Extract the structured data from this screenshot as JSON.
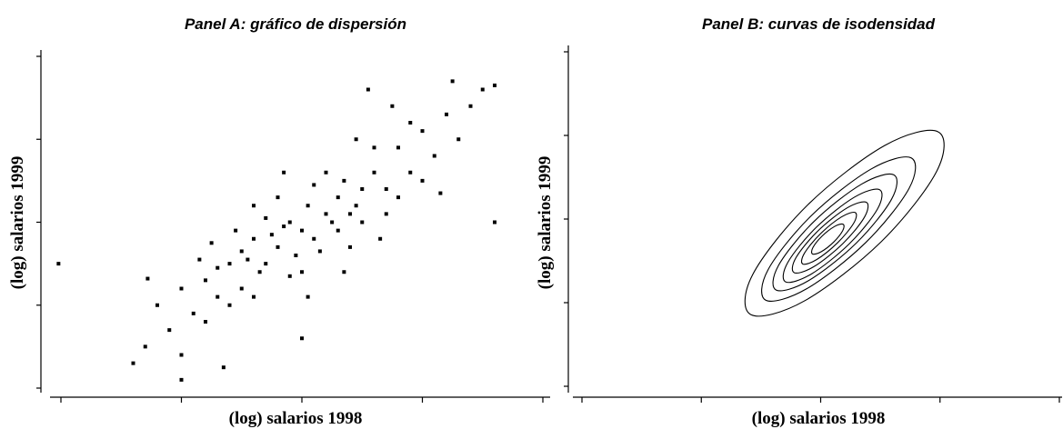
{
  "chart_data": [
    {
      "type": "scatter",
      "title": "Panel A: gráfico de dispersión",
      "xlabel": "(log) salarios 1998",
      "ylabel": "(log) salarios 1999",
      "xlim": [
        0,
        4
      ],
      "ylim": [
        0,
        4
      ],
      "xticks": [
        0,
        1,
        2,
        3,
        4
      ],
      "yticks": [
        0,
        1,
        2,
        3,
        4
      ],
      "color": "#000000",
      "x": [
        2.0,
        1.8,
        2.2,
        1.9,
        2.1,
        2.3,
        1.7,
        2.4,
        1.6,
        2.5,
        1.95,
        2.05,
        1.85,
        2.15,
        2.25,
        1.75,
        2.35,
        1.65,
        2.45,
        1.55,
        2.6,
        1.5,
        2.7,
        1.4,
        2.8,
        1.3,
        2.9,
        1.2,
        3.0,
        1.1,
        3.1,
        1.0,
        3.2,
        0.9,
        3.3,
        2.0,
        2.2,
        1.8,
        2.4,
        1.6,
        2.1,
        1.9,
        2.3,
        1.7,
        2.5,
        1.5,
        2.6,
        1.4,
        2.7,
        1.3,
        3.4,
        0.8,
        3.5,
        0.7,
        3.6,
        2.8,
        1.2,
        3.0,
        1.0,
        2.9,
        -0.02,
        0.72,
        0.6,
        1.0,
        3.6,
        2.55,
        1.35,
        2.0,
        1.45,
        2.75,
        1.85,
        2.35,
        1.6,
        2.65,
        1.25,
        3.15,
        2.05,
        2.45,
        1.15,
        3.25
      ],
      "y": [
        1.9,
        1.7,
        2.1,
        2.0,
        1.8,
        2.3,
        1.5,
        2.1,
        1.8,
        2.4,
        1.6,
        2.2,
        1.95,
        1.65,
        2.0,
        1.85,
        2.5,
        1.4,
        2.2,
        1.55,
        2.6,
        1.2,
        2.4,
        1.5,
        2.9,
        1.1,
        2.6,
        1.3,
        3.1,
        0.9,
        2.8,
        1.2,
        3.3,
        0.7,
        3.0,
        1.4,
        2.6,
        2.3,
        1.7,
        1.1,
        2.45,
        1.35,
        1.9,
        2.05,
        2.0,
        1.65,
        2.9,
        1.0,
        2.1,
        1.45,
        3.4,
        1.0,
        3.6,
        0.5,
        3.65,
        2.3,
        0.8,
        2.5,
        0.4,
        3.2,
        1.5,
        1.32,
        0.3,
        0.1,
        2.0,
        3.6,
        0.25,
        0.6,
        1.9,
        3.4,
        2.6,
        1.4,
        2.2,
        1.8,
        1.75,
        2.35,
        1.1,
        3.0,
        1.55,
        3.7
      ]
    },
    {
      "type": "contour",
      "title": "Panel B: curvas de isodensidad",
      "xlabel": "(log) salarios 1998",
      "ylabel": "(log) salarios 1999",
      "xlim": [
        0,
        4
      ],
      "ylim": [
        0,
        4
      ],
      "xticks": [
        0,
        1,
        2,
        3,
        4
      ],
      "yticks": [
        0,
        1,
        2,
        3,
        4
      ],
      "color": "#000000",
      "series": [
        {
          "x": [
            2.983,
            2.536,
            1.892,
            1.429,
            1.417,
            1.864,
            2.508,
            2.971
          ],
          "y": [
            3.044,
            2.879,
            2.17,
            1.332,
            0.856,
            1.021,
            1.73,
            2.568
          ]
        },
        {
          "x": [
            2.759,
            2.42,
            1.923,
            1.559,
            1.541,
            1.88,
            2.377,
            2.741
          ],
          "y": [
            2.731,
            2.596,
            2.042,
            1.393,
            1.029,
            1.164,
            1.718,
            2.367
          ]
        },
        {
          "x": [
            2.613,
            2.343,
            1.942,
            1.646,
            1.627,
            1.897,
            2.298,
            2.594
          ],
          "y": [
            2.529,
            2.418,
            1.968,
            1.443,
            1.151,
            1.262,
            1.712,
            2.237
          ]
        },
        {
          "x": [
            2.494,
            2.281,
            1.962,
            1.724,
            1.706,
            1.919,
            2.238,
            2.476
          ],
          "y": [
            2.351,
            2.26,
            1.899,
            1.48,
            1.249,
            1.34,
            1.701,
            2.12
          ]
        },
        {
          "x": [
            2.382,
            2.219,
            1.975,
            1.792,
            1.778,
            1.941,
            2.185,
            2.368
          ],
          "y": [
            2.201,
            2.131,
            1.855,
            1.535,
            1.359,
            1.429,
            1.705,
            2.025
          ]
        },
        {
          "x": [
            2.29,
            2.174,
            1.997,
            1.863,
            1.85,
            1.966,
            2.143,
            2.277
          ],
          "y": [
            2.078,
            2.025,
            1.822,
            1.589,
            1.462,
            1.515,
            1.718,
            1.951
          ]
        },
        {
          "x": [
            2.188,
            2.116,
            2.011,
            1.935,
            1.932,
            2.004,
            2.109,
            2.185
          ],
          "y": [
            1.938,
            1.911,
            1.795,
            1.659,
            1.582,
            1.609,
            1.725,
            1.862
          ]
        }
      ]
    }
  ]
}
